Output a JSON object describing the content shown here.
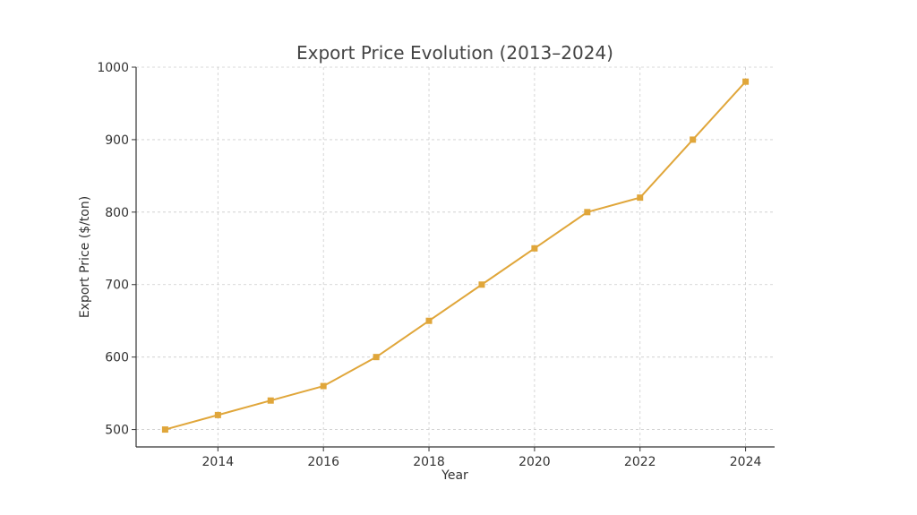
{
  "chart_data": {
    "type": "line",
    "title": "Export Price Evolution (2013–2024)",
    "xlabel": "Year",
    "ylabel": "Export Price ($/ton)",
    "x": [
      2013,
      2014,
      2015,
      2016,
      2017,
      2018,
      2019,
      2020,
      2021,
      2022,
      2023,
      2024
    ],
    "series": [
      {
        "values": [
          500,
          520,
          540,
          560,
          600,
          650,
          700,
          750,
          800,
          820,
          900,
          980
        ],
        "color": "#E0A63A",
        "marker": "square"
      }
    ],
    "xlim": [
      2012.45,
      2024.55
    ],
    "ylim": [
      476,
      1000
    ],
    "xticks": [
      2014,
      2016,
      2018,
      2020,
      2022,
      2024
    ],
    "yticks": [
      500,
      600,
      700,
      800,
      900,
      1000
    ],
    "grid": true
  }
}
